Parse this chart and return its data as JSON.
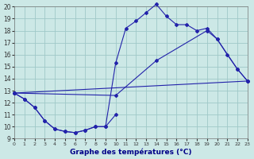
{
  "title": "Graphe des températures (°C)",
  "bg_color": "#cce8e6",
  "grid_color": "#9fc8c8",
  "line_color": "#2222aa",
  "xlim": [
    0,
    23
  ],
  "ylim": [
    9,
    20
  ],
  "xticks": [
    0,
    1,
    2,
    3,
    4,
    5,
    6,
    7,
    8,
    9,
    10,
    11,
    12,
    13,
    14,
    15,
    16,
    17,
    18,
    19,
    20,
    21,
    22,
    23
  ],
  "yticks": [
    9,
    10,
    11,
    12,
    13,
    14,
    15,
    16,
    17,
    18,
    19,
    20
  ],
  "curve1_x": [
    0,
    1,
    2,
    3,
    4,
    5,
    6,
    7,
    8,
    9,
    10
  ],
  "curve1_y": [
    12.8,
    12.3,
    11.6,
    10.5,
    9.8,
    9.6,
    9.5,
    9.7,
    10.0,
    10.0,
    11.0
  ],
  "curve2_x": [
    0,
    1,
    2,
    3,
    4,
    5,
    6,
    7,
    8,
    9,
    10,
    11,
    12,
    13,
    14,
    15,
    16,
    17,
    18,
    19,
    20,
    21,
    22,
    23
  ],
  "curve2_y": [
    12.8,
    12.3,
    11.6,
    10.5,
    9.8,
    9.6,
    9.5,
    9.7,
    10.0,
    10.0,
    15.3,
    18.2,
    18.8,
    19.5,
    20.2,
    19.2,
    18.5,
    18.5,
    18.0,
    18.2,
    17.3,
    16.0,
    14.8,
    13.8
  ],
  "curve3_x": [
    0,
    10,
    14,
    19,
    20,
    22,
    23
  ],
  "curve3_y": [
    12.8,
    12.6,
    15.5,
    18.0,
    17.3,
    14.8,
    13.8
  ],
  "curve4_x": [
    0,
    23
  ],
  "curve4_y": [
    12.8,
    13.8
  ]
}
